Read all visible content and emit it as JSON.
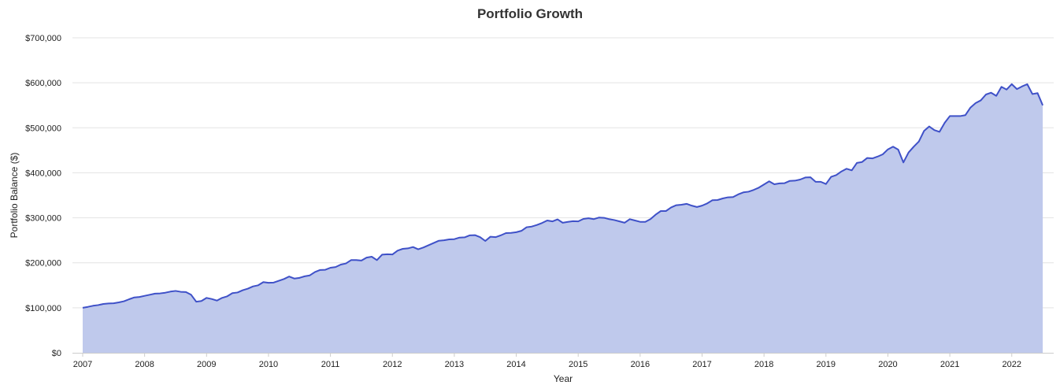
{
  "chart_data": {
    "type": "area",
    "title": "Portfolio Growth",
    "xlabel": "Year",
    "ylabel": "Portfolio Balance ($)",
    "ylim": [
      0,
      700000
    ],
    "xlim": [
      "2007-01",
      "2022-06"
    ],
    "y_ticks": [
      0,
      100000,
      200000,
      300000,
      400000,
      500000,
      600000,
      700000
    ],
    "y_tick_labels": [
      "$0",
      "$100,000",
      "$200,000",
      "$300,000",
      "$400,000",
      "$500,000",
      "$600,000",
      "$700,000"
    ],
    "x_ticks": [
      "2007",
      "2008",
      "2009",
      "2010",
      "2011",
      "2012",
      "2013",
      "2014",
      "2015",
      "2016",
      "2017",
      "2018",
      "2019",
      "2020",
      "2021",
      "2022"
    ],
    "grid": "horizontal",
    "colors": {
      "line": "#3f51c8",
      "fill": "#bfc9ec",
      "grid": "#e3e3e3"
    },
    "series": [
      {
        "start": "2007-01",
        "frequency": "monthly",
        "values": [
          100000,
          102000,
          104500,
          106000,
          108500,
          109500,
          110000,
          112000,
          114500,
          119000,
          123000,
          124000,
          126500,
          129000,
          131500,
          132000,
          133500,
          136000,
          137500,
          135500,
          135000,
          129000,
          113500,
          115000,
          122000,
          119500,
          116000,
          122000,
          125500,
          132500,
          134000,
          139000,
          142500,
          147500,
          150000,
          157000,
          155500,
          156000,
          160000,
          164000,
          169500,
          165000,
          166500,
          170000,
          172000,
          179500,
          184000,
          184500,
          189000,
          190500,
          196000,
          198500,
          206000,
          206000,
          205000,
          211500,
          213500,
          206000,
          218000,
          219000,
          218500,
          227000,
          231000,
          232000,
          235000,
          230000,
          234000,
          239000,
          244000,
          249000,
          250000,
          252000,
          252500,
          256000,
          256500,
          261000,
          261500,
          257000,
          248500,
          258000,
          257000,
          261000,
          266000,
          266500,
          268000,
          271000,
          279000,
          280500,
          284000,
          288500,
          294000,
          292000,
          296500,
          289000,
          291000,
          292500,
          292000,
          297500,
          299000,
          297000,
          300500,
          300000,
          297000,
          295000,
          292000,
          289000,
          297000,
          294000,
          291000,
          291000,
          297000,
          307000,
          315000,
          315000,
          323000,
          328000,
          329000,
          331000,
          327000,
          324000,
          327000,
          332000,
          339000,
          339500,
          343000,
          345500,
          346000,
          352000,
          356500,
          358000,
          362000,
          367000,
          374000,
          381000,
          374500,
          376500,
          377000,
          382000,
          382500,
          385000,
          389500,
          390000,
          380000,
          380000,
          375000,
          391000,
          395000,
          403000,
          409000,
          405500,
          422000,
          424000,
          433000,
          432000,
          436000,
          441000,
          452000,
          458000,
          451500,
          423000,
          445000,
          458000,
          469500,
          493000,
          503000,
          495000,
          491000,
          511000,
          526000,
          526000,
          526000,
          528000,
          545000,
          555000,
          561000,
          574000,
          578000,
          571000,
          591000,
          585000,
          597000,
          586000,
          592000,
          597000,
          575000,
          577000,
          550000
        ]
      }
    ]
  }
}
